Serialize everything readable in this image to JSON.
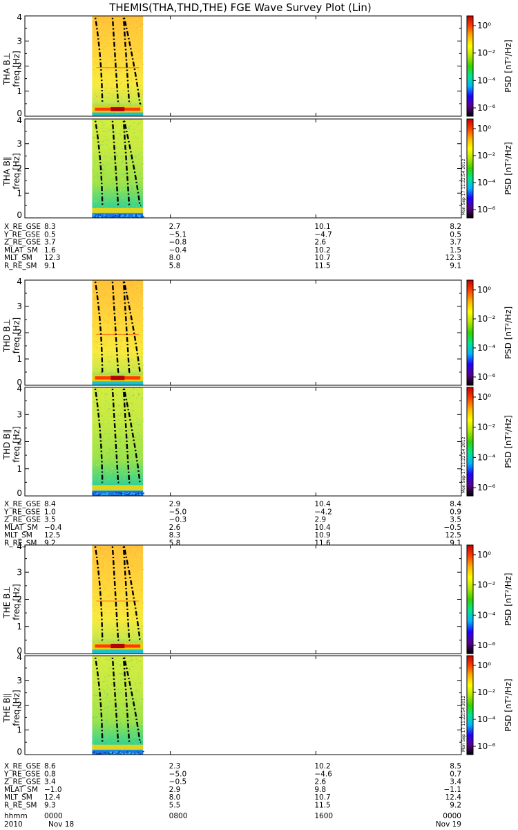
{
  "chart_data": {
    "type": "heatmap",
    "title": "THEMIS(THA,THD,THE) FGE Wave Survey Plot (Lin)",
    "freq_axis": {
      "label_unit": "freq [Hz]",
      "ylim": [
        0,
        4
      ],
      "ticks": [
        "0",
        "1",
        "2",
        "3",
        "4"
      ]
    },
    "colorbar": {
      "label": "PSD [nT²/Hz]",
      "ticks": [
        "10⁰",
        "10⁻²",
        "10⁻⁴",
        "10⁻⁶"
      ],
      "scale": "log",
      "colors": [
        "#000000",
        "#5a008c",
        "#2000ff",
        "#00b4ff",
        "#00e68c",
        "#34d200",
        "#b4e600",
        "#ffff00",
        "#ffb400",
        "#ff4000",
        "#c80000"
      ]
    },
    "stamp": "Mon Sep 17 11:22:54 2012",
    "time_axis": {
      "row_label": "hhmm",
      "year": "2010",
      "ticks": [
        {
          "hhmm": "0000",
          "date": "Nov 18"
        },
        {
          "hhmm": "0800",
          "date": ""
        },
        {
          "hhmm": "1600",
          "date": ""
        },
        {
          "hhmm": "0000",
          "date": "Nov 19"
        }
      ],
      "data_span_hours": [
        3.7,
        6.5
      ]
    },
    "probes": [
      {
        "name": "THA",
        "panels": [
          {
            "label": "THA B⊥",
            "type": "perp"
          },
          {
            "label": "THA B∥",
            "type": "par"
          }
        ],
        "ephemeris": [
          {
            "name": "X_RE_GSE",
            "values": [
              "8.3",
              "2.7",
              "10.1",
              "8.2"
            ]
          },
          {
            "name": "Y_RE_GSE",
            "values": [
              "0.5",
              "−5.1",
              "−4.7",
              "0.5"
            ]
          },
          {
            "name": "Z_RE_GSE",
            "values": [
              "3.7",
              "−0.8",
              "2.6",
              "3.7"
            ]
          },
          {
            "name": "MLAT_SM",
            "values": [
              "1.6",
              "−0.4",
              "10.2",
              "1.5"
            ]
          },
          {
            "name": "MLT_SM",
            "values": [
              "12.3",
              "8.0",
              "10.7",
              "12.3"
            ]
          },
          {
            "name": "R_RE_SM",
            "values": [
              "9.1",
              "5.8",
              "11.5",
              "9.1"
            ]
          }
        ]
      },
      {
        "name": "THD",
        "panels": [
          {
            "label": "THD B⊥",
            "type": "perp"
          },
          {
            "label": "THD B∥",
            "type": "par"
          }
        ],
        "ephemeris": [
          {
            "name": "X_RE_GSE",
            "values": [
              "8.4",
              "2.9",
              "10.4",
              "8.4"
            ]
          },
          {
            "name": "Y_RE_GSE",
            "values": [
              "1.0",
              "−5.0",
              "−4.2",
              "0.9"
            ]
          },
          {
            "name": "Z_RE_GSE",
            "values": [
              "3.5",
              "−0.3",
              "2.9",
              "3.5"
            ]
          },
          {
            "name": "MLAT_SM",
            "values": [
              "−0.4",
              "2.6",
              "10.4",
              "−0.5"
            ]
          },
          {
            "name": "MLT_SM",
            "values": [
              "12.5",
              "8.3",
              "10.9",
              "12.5"
            ]
          },
          {
            "name": "R_RE_SM",
            "values": [
              "9.2",
              "5.8",
              "11.6",
              "9.1"
            ]
          }
        ]
      },
      {
        "name": "THE",
        "panels": [
          {
            "label": "THE B⊥",
            "type": "perp"
          },
          {
            "label": "THE B∥",
            "type": "par"
          }
        ],
        "ephemeris": [
          {
            "name": "X_RE_GSE",
            "values": [
              "8.6",
              "2.3",
              "10.2",
              "8.5"
            ]
          },
          {
            "name": "Y_RE_GSE",
            "values": [
              "0.8",
              "−5.0",
              "−4.6",
              "0.7"
            ]
          },
          {
            "name": "Z_RE_GSE",
            "values": [
              "3.4",
              "−0.5",
              "2.6",
              "3.4"
            ]
          },
          {
            "name": "MLAT_SM",
            "values": [
              "−1.0",
              "2.9",
              "9.8",
              "−1.1"
            ]
          },
          {
            "name": "MLT_SM",
            "values": [
              "12.4",
              "8.0",
              "10.7",
              "12.4"
            ]
          },
          {
            "name": "R_RE_SM",
            "values": [
              "9.3",
              "5.5",
              "11.5",
              "9.2"
            ]
          }
        ]
      }
    ]
  }
}
